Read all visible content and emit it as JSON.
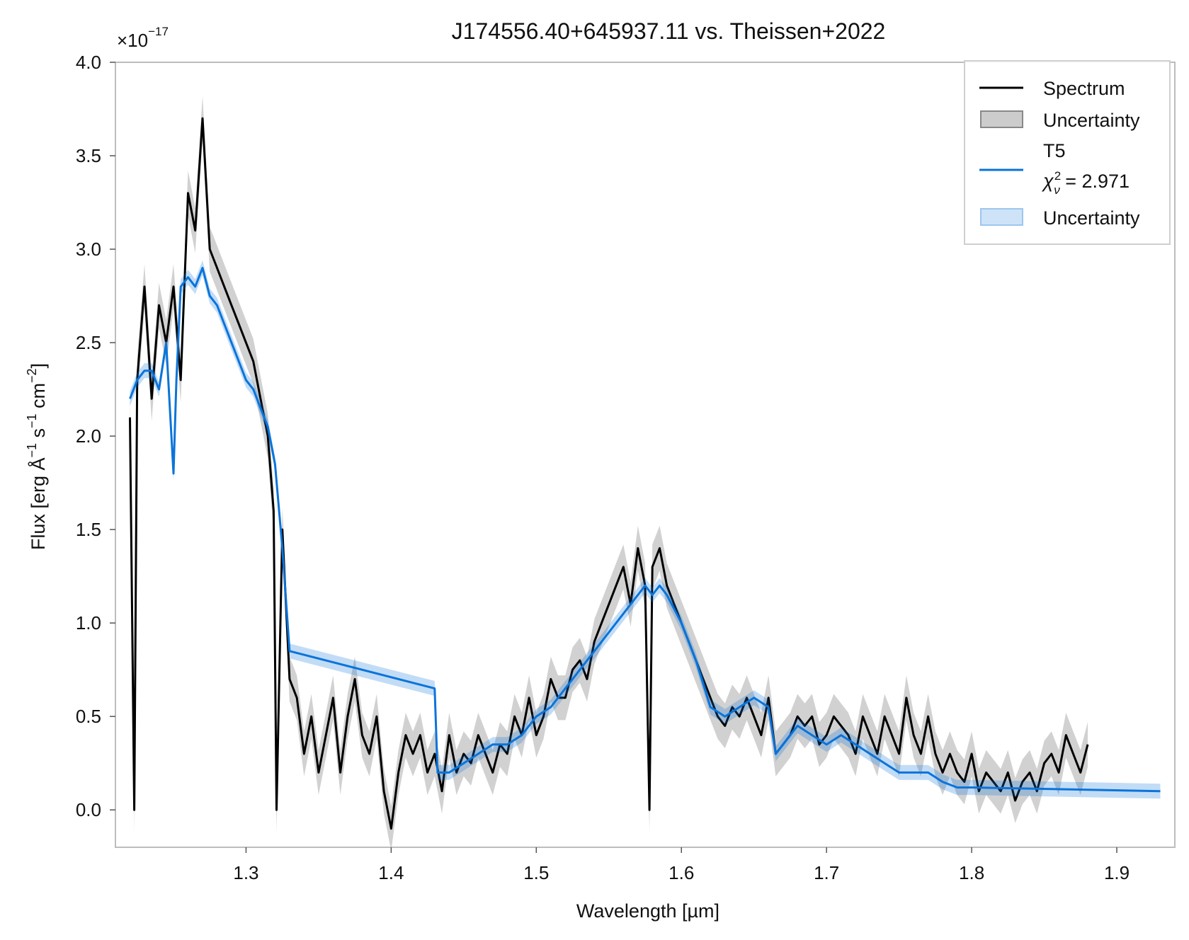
{
  "chart_data": {
    "type": "line",
    "title": "J174556.40+645937.11 vs. Theissen+2022",
    "xlabel": "Wavelength [µm]",
    "ylabel_parts": [
      "Flux [erg Å",
      "−1",
      " s",
      "−1",
      " cm",
      "−2",
      "]"
    ],
    "y_scale_factor_text": "×10",
    "y_scale_factor_exponent": "−17",
    "xlim": [
      1.21,
      1.94
    ],
    "ylim": [
      -0.2,
      4.0
    ],
    "x_ticks": [
      1.3,
      1.4,
      1.5,
      1.6,
      1.7,
      1.8,
      1.9
    ],
    "x_tick_labels": [
      "1.3",
      "1.4",
      "1.5",
      "1.6",
      "1.7",
      "1.8",
      "1.9"
    ],
    "y_ticks": [
      0.0,
      0.5,
      1.0,
      1.5,
      2.0,
      2.5,
      3.0,
      3.5,
      4.0
    ],
    "y_tick_labels": [
      "0.0",
      "0.5",
      "1.0",
      "1.5",
      "2.0",
      "2.5",
      "3.0",
      "3.5",
      "4.0"
    ],
    "grid": false,
    "legend_position": "top-right",
    "legend": [
      {
        "kind": "line",
        "label": "Spectrum",
        "color": "#000000"
      },
      {
        "kind": "band",
        "label": "Uncertainty",
        "color": "#999999"
      },
      {
        "kind": "line",
        "label": "T5",
        "label2_prefix": "χ",
        "label2_sup": "2",
        "label2_sub": "ν",
        "label2_suffix": " = 2.971",
        "color": "#0a74da"
      },
      {
        "kind": "band",
        "label": "Uncertainty",
        "color": "#0a74da"
      }
    ],
    "series": [
      {
        "name": "Spectrum",
        "color": "#000000",
        "band_color": "#999999",
        "band_halfwidth": 0.12,
        "x": [
          1.22,
          1.223,
          1.225,
          1.23,
          1.235,
          1.24,
          1.245,
          1.25,
          1.255,
          1.26,
          1.265,
          1.27,
          1.275,
          1.28,
          1.285,
          1.29,
          1.295,
          1.3,
          1.305,
          1.31,
          1.315,
          1.319,
          1.321,
          1.325,
          1.33,
          1.335,
          1.34,
          1.345,
          1.35,
          1.355,
          1.36,
          1.365,
          1.37,
          1.375,
          1.38,
          1.385,
          1.39,
          1.395,
          1.4,
          1.405,
          1.41,
          1.415,
          1.42,
          1.425,
          1.43,
          1.435,
          1.44,
          1.445,
          1.45,
          1.455,
          1.46,
          1.465,
          1.47,
          1.475,
          1.48,
          1.485,
          1.49,
          1.495,
          1.5,
          1.505,
          1.51,
          1.515,
          1.52,
          1.525,
          1.53,
          1.535,
          1.54,
          1.545,
          1.55,
          1.555,
          1.56,
          1.565,
          1.57,
          1.575,
          1.578,
          1.58,
          1.585,
          1.59,
          1.595,
          1.6,
          1.605,
          1.61,
          1.615,
          1.62,
          1.625,
          1.63,
          1.635,
          1.64,
          1.645,
          1.65,
          1.655,
          1.66,
          1.665,
          1.67,
          1.675,
          1.68,
          1.685,
          1.69,
          1.695,
          1.7,
          1.705,
          1.71,
          1.715,
          1.72,
          1.725,
          1.73,
          1.735,
          1.74,
          1.745,
          1.75,
          1.755,
          1.76,
          1.765,
          1.77,
          1.775,
          1.78,
          1.785,
          1.79,
          1.795,
          1.8,
          1.805,
          1.81,
          1.815,
          1.82,
          1.825,
          1.83,
          1.835,
          1.84,
          1.845,
          1.85,
          1.855,
          1.86,
          1.865,
          1.87,
          1.875,
          1.88
        ],
        "y": [
          2.1,
          0.0,
          2.3,
          2.8,
          2.2,
          2.7,
          2.5,
          2.8,
          2.3,
          3.3,
          3.1,
          3.7,
          3.0,
          2.9,
          2.8,
          2.7,
          2.6,
          2.5,
          2.4,
          2.2,
          2.0,
          1.6,
          0.0,
          1.5,
          0.7,
          0.6,
          0.3,
          0.5,
          0.2,
          0.4,
          0.6,
          0.2,
          0.5,
          0.7,
          0.4,
          0.3,
          0.5,
          0.1,
          -0.1,
          0.2,
          0.4,
          0.3,
          0.4,
          0.2,
          0.3,
          0.1,
          0.4,
          0.2,
          0.3,
          0.25,
          0.4,
          0.3,
          0.2,
          0.35,
          0.3,
          0.5,
          0.4,
          0.6,
          0.4,
          0.5,
          0.7,
          0.6,
          0.6,
          0.75,
          0.8,
          0.7,
          0.9,
          1.0,
          1.1,
          1.2,
          1.3,
          1.1,
          1.4,
          1.2,
          0.0,
          1.3,
          1.4,
          1.2,
          1.1,
          1.0,
          0.9,
          0.8,
          0.7,
          0.6,
          0.5,
          0.45,
          0.55,
          0.5,
          0.6,
          0.5,
          0.4,
          0.6,
          0.3,
          0.35,
          0.4,
          0.5,
          0.45,
          0.5,
          0.35,
          0.4,
          0.5,
          0.45,
          0.4,
          0.3,
          0.5,
          0.4,
          0.3,
          0.5,
          0.4,
          0.3,
          0.6,
          0.4,
          0.3,
          0.5,
          0.3,
          0.2,
          0.3,
          0.2,
          0.15,
          0.3,
          0.1,
          0.2,
          0.15,
          0.1,
          0.2,
          0.05,
          0.15,
          0.2,
          0.1,
          0.25,
          0.3,
          0.2,
          0.4,
          0.3,
          0.2,
          0.35
        ]
      },
      {
        "name": "T5",
        "color": "#0a74da",
        "band_color": "#0a74da",
        "band_halfwidth": 0.04,
        "x": [
          1.22,
          1.225,
          1.23,
          1.235,
          1.24,
          1.245,
          1.25,
          1.252,
          1.255,
          1.26,
          1.265,
          1.27,
          1.275,
          1.28,
          1.285,
          1.29,
          1.295,
          1.3,
          1.305,
          1.31,
          1.315,
          1.32,
          1.325,
          1.33,
          1.43,
          1.432,
          1.44,
          1.45,
          1.46,
          1.47,
          1.48,
          1.49,
          1.5,
          1.51,
          1.52,
          1.53,
          1.54,
          1.55,
          1.56,
          1.57,
          1.575,
          1.58,
          1.585,
          1.59,
          1.6,
          1.61,
          1.62,
          1.63,
          1.64,
          1.65,
          1.66,
          1.665,
          1.67,
          1.68,
          1.69,
          1.7,
          1.71,
          1.72,
          1.73,
          1.74,
          1.75,
          1.76,
          1.77,
          1.78,
          1.79,
          1.8,
          1.93
        ],
        "y": [
          2.2,
          2.3,
          2.35,
          2.35,
          2.25,
          2.5,
          1.8,
          2.3,
          2.8,
          2.85,
          2.8,
          2.9,
          2.75,
          2.7,
          2.6,
          2.5,
          2.4,
          2.3,
          2.25,
          2.15,
          2.05,
          1.85,
          1.4,
          0.85,
          0.65,
          0.2,
          0.2,
          0.25,
          0.3,
          0.35,
          0.35,
          0.4,
          0.5,
          0.55,
          0.65,
          0.75,
          0.85,
          0.95,
          1.05,
          1.15,
          1.2,
          1.15,
          1.2,
          1.15,
          1.0,
          0.8,
          0.55,
          0.5,
          0.55,
          0.6,
          0.55,
          0.3,
          0.35,
          0.45,
          0.4,
          0.35,
          0.4,
          0.35,
          0.3,
          0.25,
          0.2,
          0.2,
          0.2,
          0.15,
          0.12,
          0.12,
          0.1
        ]
      }
    ]
  }
}
